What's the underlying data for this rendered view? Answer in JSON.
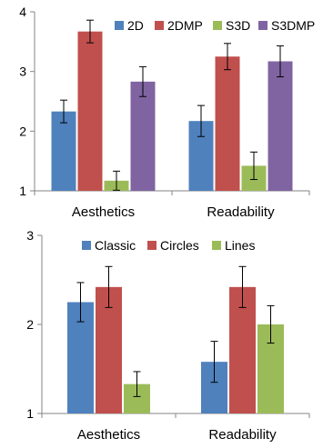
{
  "chart_data": [
    {
      "type": "bar",
      "categories": [
        "Aesthetics",
        "Readability"
      ],
      "series": [
        {
          "name": "2D",
          "values": [
            2.33,
            2.17
          ],
          "errors": [
            0.19,
            0.26
          ],
          "color": "#4f81bd"
        },
        {
          "name": "2DMP",
          "values": [
            3.67,
            3.25
          ],
          "errors": [
            0.19,
            0.22
          ],
          "color": "#c0504d"
        },
        {
          "name": "S3D",
          "values": [
            1.17,
            1.42
          ],
          "errors": [
            0.16,
            0.23
          ],
          "color": "#9bbb59"
        },
        {
          "name": "S3DMP",
          "values": [
            2.83,
            3.17
          ],
          "errors": [
            0.25,
            0.26
          ],
          "color": "#8064a2"
        }
      ],
      "ylim": [
        1,
        4
      ],
      "yticks": [
        "1",
        "2",
        "3",
        "4"
      ],
      "grid": false,
      "legend_position": "top"
    },
    {
      "type": "bar",
      "categories": [
        "Aesthetics",
        "Readability"
      ],
      "series": [
        {
          "name": "Classic",
          "values": [
            2.25,
            1.58
          ],
          "errors": [
            0.22,
            0.23
          ],
          "color": "#4f81bd"
        },
        {
          "name": "Circles",
          "values": [
            2.42,
            2.42
          ],
          "errors": [
            0.23,
            0.23
          ],
          "color": "#c0504d"
        },
        {
          "name": "Lines",
          "values": [
            1.33,
            2.0
          ],
          "errors": [
            0.14,
            0.21
          ],
          "color": "#9bbb59"
        }
      ],
      "ylim": [
        1,
        3
      ],
      "yticks": [
        "1",
        "2",
        "3"
      ],
      "grid": false,
      "legend_position": "top"
    }
  ]
}
